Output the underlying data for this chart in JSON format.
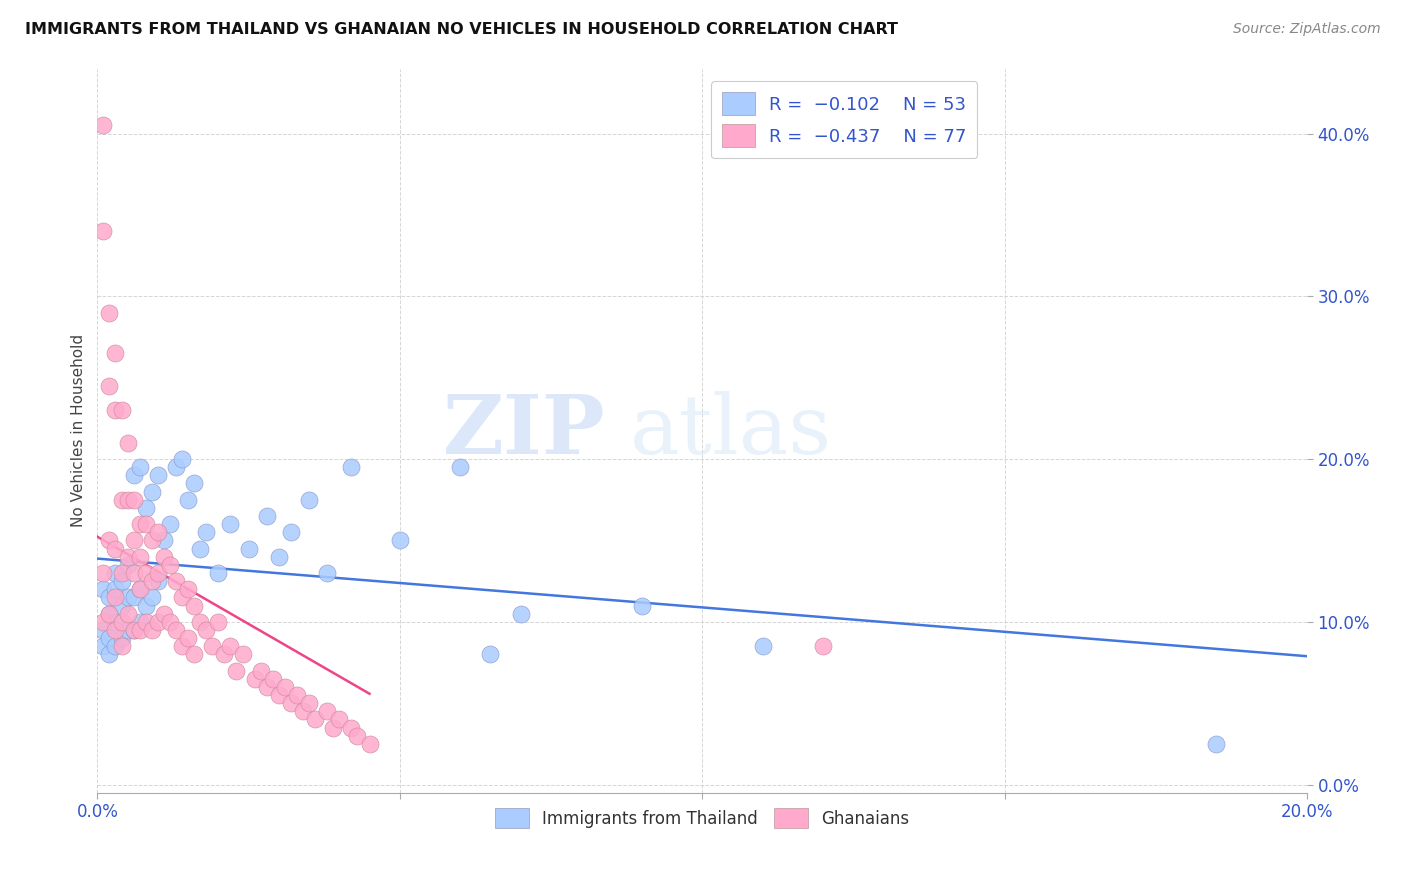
{
  "title": "IMMIGRANTS FROM THAILAND VS GHANAIAN NO VEHICLES IN HOUSEHOLD CORRELATION CHART",
  "source": "Source: ZipAtlas.com",
  "ylabel": "No Vehicles in Household",
  "xlim": [
    0.0,
    0.2
  ],
  "ylim": [
    -0.005,
    0.44
  ],
  "xticks": [
    0.0,
    0.05,
    0.1,
    0.15,
    0.2
  ],
  "yticks": [
    0.0,
    0.1,
    0.2,
    0.3,
    0.4
  ],
  "xtick_labels_shown": [
    "0.0%",
    "",
    "",
    "",
    "20.0%"
  ],
  "ytick_labels": [
    "0.0%",
    "10.0%",
    "20.0%",
    "30.0%",
    "40.0%"
  ],
  "legend_labels": [
    "Immigrants from Thailand",
    "Ghanaians"
  ],
  "scatter_color_blue": "#aaccff",
  "scatter_color_pink": "#ffaacc",
  "line_color_blue": "#4477dd",
  "line_color_pink": "#ee4488",
  "watermark_zip": "ZIP",
  "watermark_atlas": "atlas",
  "blue_points_x": [
    0.001,
    0.001,
    0.001,
    0.002,
    0.002,
    0.002,
    0.002,
    0.003,
    0.003,
    0.003,
    0.003,
    0.004,
    0.004,
    0.004,
    0.005,
    0.005,
    0.005,
    0.006,
    0.006,
    0.006,
    0.007,
    0.007,
    0.007,
    0.008,
    0.008,
    0.009,
    0.009,
    0.01,
    0.01,
    0.011,
    0.012,
    0.013,
    0.014,
    0.015,
    0.016,
    0.017,
    0.018,
    0.02,
    0.022,
    0.025,
    0.028,
    0.03,
    0.032,
    0.035,
    0.038,
    0.042,
    0.05,
    0.06,
    0.065,
    0.07,
    0.09,
    0.11,
    0.185
  ],
  "blue_points_y": [
    0.085,
    0.095,
    0.12,
    0.08,
    0.09,
    0.105,
    0.115,
    0.085,
    0.1,
    0.12,
    0.13,
    0.09,
    0.11,
    0.125,
    0.095,
    0.115,
    0.135,
    0.095,
    0.115,
    0.19,
    0.1,
    0.12,
    0.195,
    0.11,
    0.17,
    0.115,
    0.18,
    0.125,
    0.19,
    0.15,
    0.16,
    0.195,
    0.2,
    0.175,
    0.185,
    0.145,
    0.155,
    0.13,
    0.16,
    0.145,
    0.165,
    0.14,
    0.155,
    0.175,
    0.13,
    0.195,
    0.15,
    0.195,
    0.08,
    0.105,
    0.11,
    0.085,
    0.025
  ],
  "pink_points_x": [
    0.001,
    0.001,
    0.001,
    0.001,
    0.002,
    0.002,
    0.002,
    0.002,
    0.003,
    0.003,
    0.003,
    0.003,
    0.003,
    0.004,
    0.004,
    0.004,
    0.004,
    0.004,
    0.005,
    0.005,
    0.005,
    0.005,
    0.006,
    0.006,
    0.006,
    0.006,
    0.007,
    0.007,
    0.007,
    0.007,
    0.008,
    0.008,
    0.008,
    0.009,
    0.009,
    0.009,
    0.01,
    0.01,
    0.01,
    0.011,
    0.011,
    0.012,
    0.012,
    0.013,
    0.013,
    0.014,
    0.014,
    0.015,
    0.015,
    0.016,
    0.016,
    0.017,
    0.018,
    0.019,
    0.02,
    0.021,
    0.022,
    0.023,
    0.024,
    0.026,
    0.027,
    0.028,
    0.029,
    0.03,
    0.031,
    0.032,
    0.033,
    0.034,
    0.035,
    0.036,
    0.038,
    0.039,
    0.04,
    0.042,
    0.043,
    0.045,
    0.12
  ],
  "pink_points_y": [
    0.405,
    0.13,
    0.34,
    0.1,
    0.29,
    0.245,
    0.15,
    0.105,
    0.265,
    0.23,
    0.145,
    0.115,
    0.095,
    0.23,
    0.175,
    0.13,
    0.1,
    0.085,
    0.21,
    0.175,
    0.14,
    0.105,
    0.175,
    0.15,
    0.13,
    0.095,
    0.16,
    0.14,
    0.12,
    0.095,
    0.16,
    0.13,
    0.1,
    0.15,
    0.125,
    0.095,
    0.155,
    0.13,
    0.1,
    0.14,
    0.105,
    0.135,
    0.1,
    0.125,
    0.095,
    0.115,
    0.085,
    0.12,
    0.09,
    0.11,
    0.08,
    0.1,
    0.095,
    0.085,
    0.1,
    0.08,
    0.085,
    0.07,
    0.08,
    0.065,
    0.07,
    0.06,
    0.065,
    0.055,
    0.06,
    0.05,
    0.055,
    0.045,
    0.05,
    0.04,
    0.045,
    0.035,
    0.04,
    0.035,
    0.03,
    0.025,
    0.085
  ]
}
